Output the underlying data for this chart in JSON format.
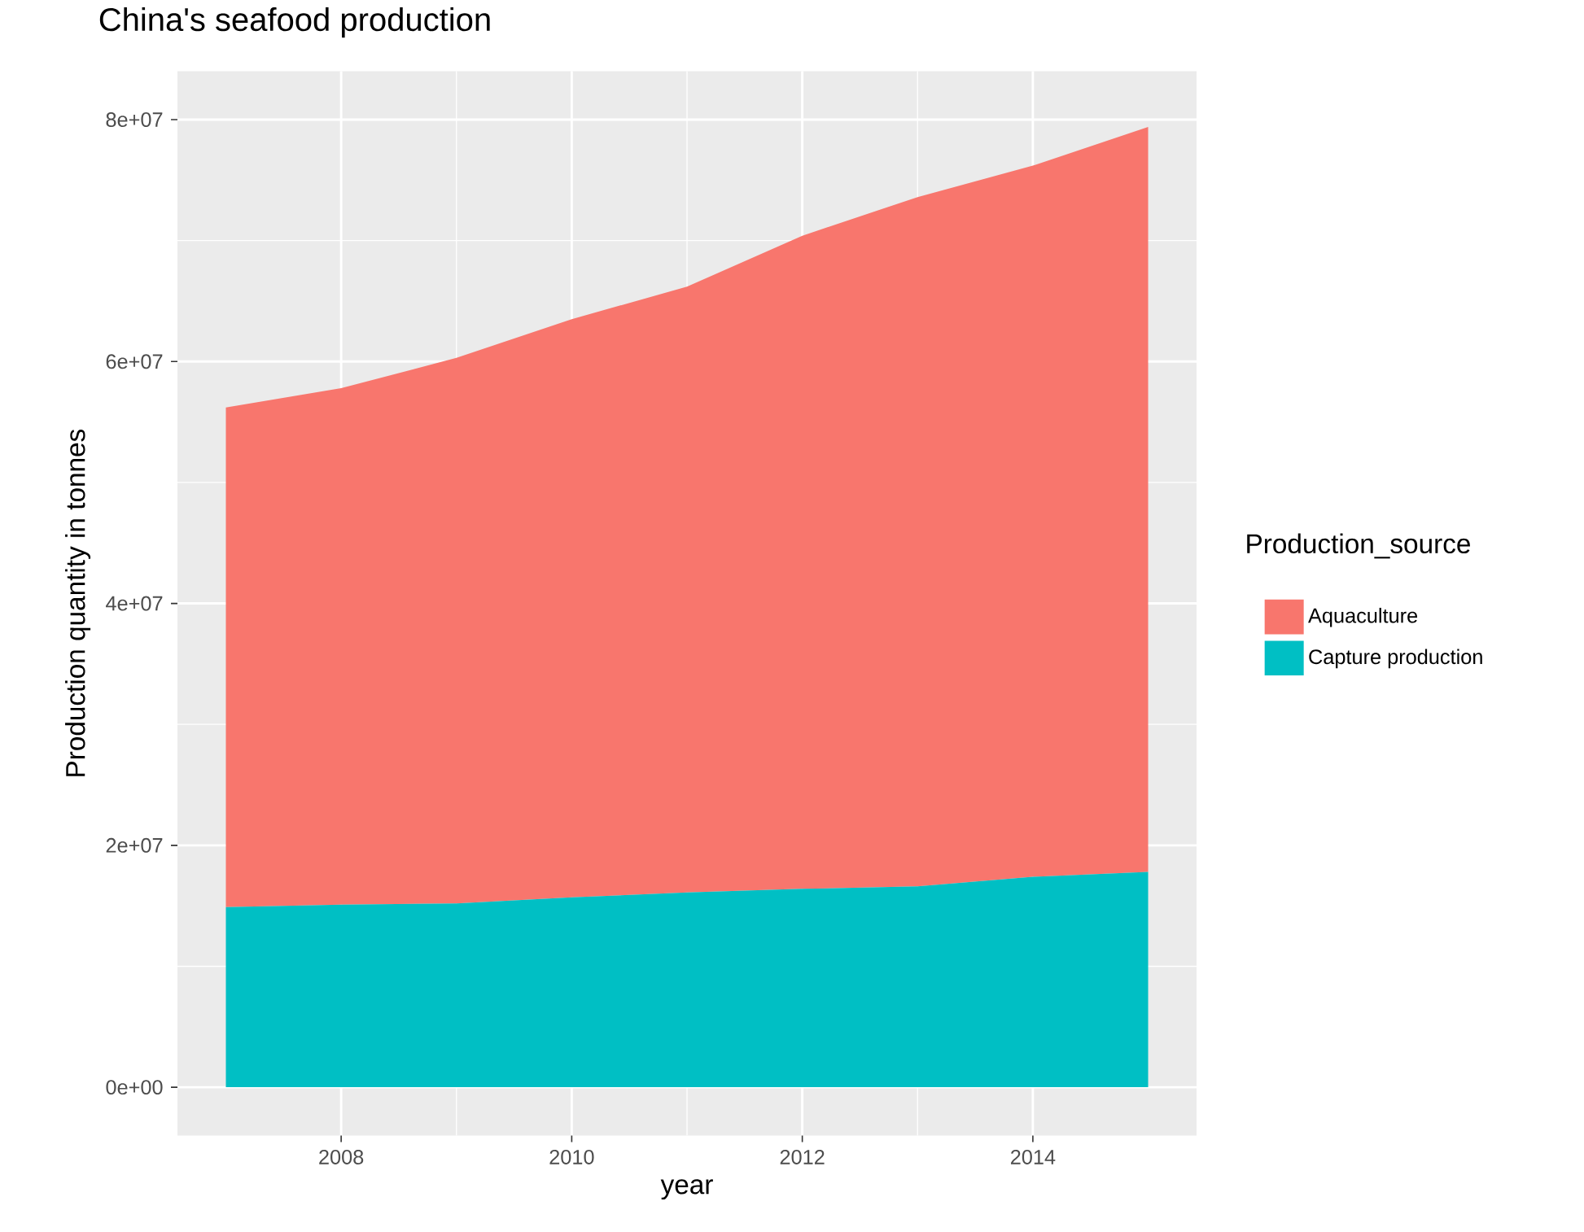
{
  "chart_data": {
    "type": "area",
    "title": "China's seafood production",
    "xlabel": "year",
    "ylabel": "Production quantity in tonnes",
    "legend_title": "Production_source",
    "x": [
      2007,
      2008,
      2009,
      2010,
      2011,
      2012,
      2013,
      2014,
      2015
    ],
    "stacked": true,
    "series": [
      {
        "name": "Capture production",
        "color": "#00BFC4",
        "values": [
          14900000,
          15100000,
          15200000,
          15700000,
          16100000,
          16400000,
          16600000,
          17400000,
          17800000
        ]
      },
      {
        "name": "Aquaculture",
        "color": "#F8766D",
        "values": [
          41300000,
          42700000,
          45100000,
          47800000,
          50100000,
          54000000,
          57000000,
          58800000,
          61600000
        ]
      }
    ],
    "xlim": [
      2006.58,
      2015.42
    ],
    "ylim": [
      -4000000,
      84000000
    ],
    "xticks": [
      2008,
      2010,
      2012,
      2014
    ],
    "yticks": [
      {
        "value": 0,
        "label": "0e+00"
      },
      {
        "value": 20000000,
        "label": "2e+07"
      },
      {
        "value": 40000000,
        "label": "4e+07"
      },
      {
        "value": 60000000,
        "label": "6e+07"
      },
      {
        "value": 80000000,
        "label": "8e+07"
      }
    ],
    "grid": true,
    "legend": "right"
  }
}
